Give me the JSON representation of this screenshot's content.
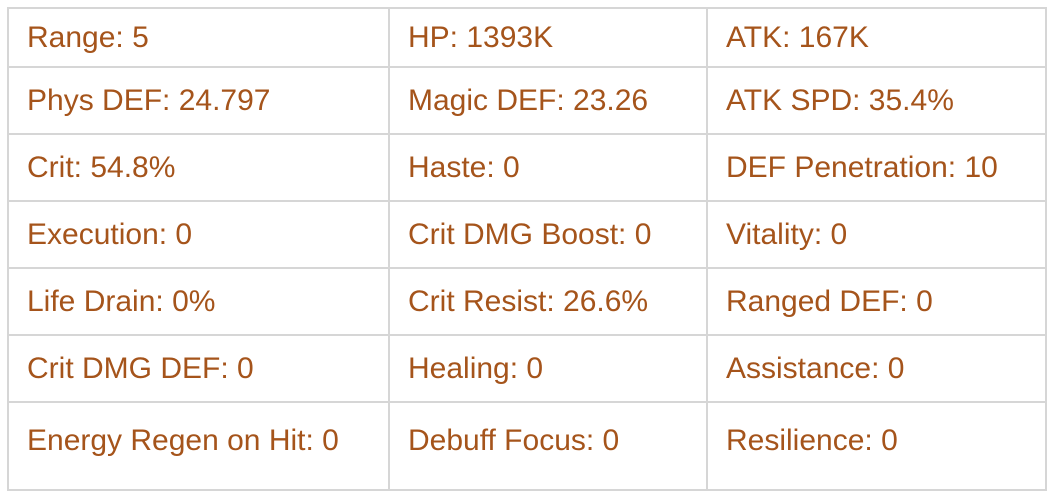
{
  "colors": {
    "text": "#a5541b",
    "border": "#d6d6d6",
    "background": "#ffffff"
  },
  "stats_table": {
    "rows": [
      [
        "Range: 5",
        "HP: 1393K",
        "ATK: 167K"
      ],
      [
        "Phys DEF: 24.797",
        "Magic DEF: 23.26",
        "ATK SPD: 35.4%"
      ],
      [
        "Crit: 54.8%",
        "Haste: 0",
        "DEF Penetration: 10"
      ],
      [
        "Execution: 0",
        "Crit DMG Boost: 0",
        "Vitality: 0"
      ],
      [
        "Life Drain: 0%",
        "Crit Resist: 26.6%",
        "Ranged DEF: 0"
      ],
      [
        "Crit DMG DEF: 0",
        "Healing: 0",
        "Assistance: 0"
      ],
      [
        "Energy Regen on Hit: 0",
        "Debuff Focus: 0",
        "Resilience: 0"
      ]
    ]
  }
}
